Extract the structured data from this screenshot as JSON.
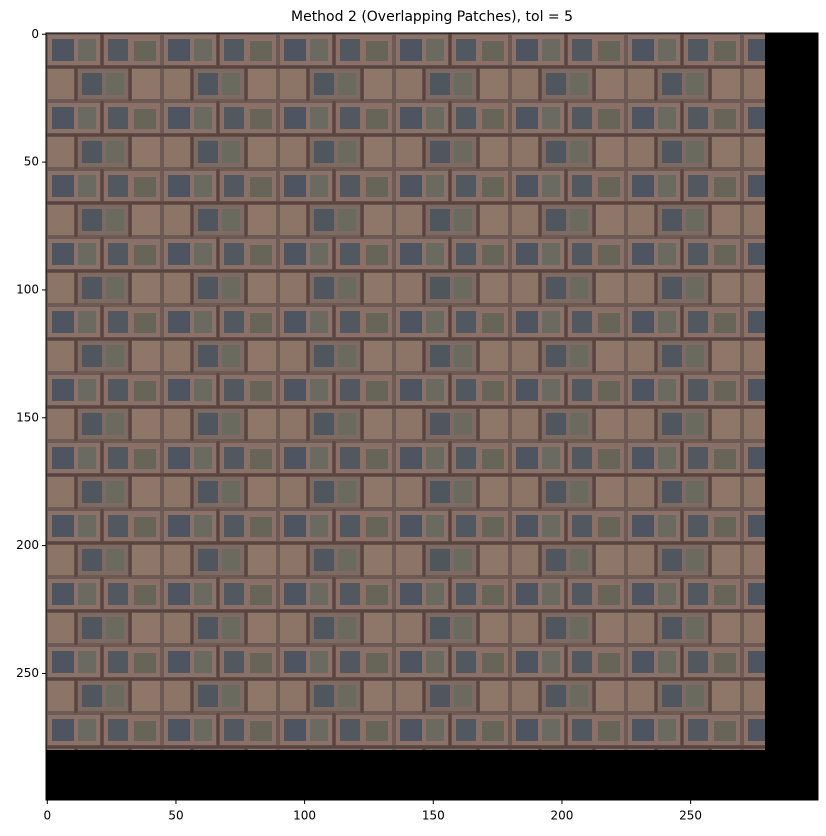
{
  "chart_data": {
    "type": "image",
    "title": "Method 2 (Overlapping Patches), tol = 5",
    "xlim": [
      -0.5,
      299.5
    ],
    "ylim": [
      299.5,
      -0.5
    ],
    "xticks": [
      0,
      50,
      100,
      150,
      200,
      250
    ],
    "yticks": [
      0,
      50,
      100,
      150,
      200,
      250
    ]
  }
}
